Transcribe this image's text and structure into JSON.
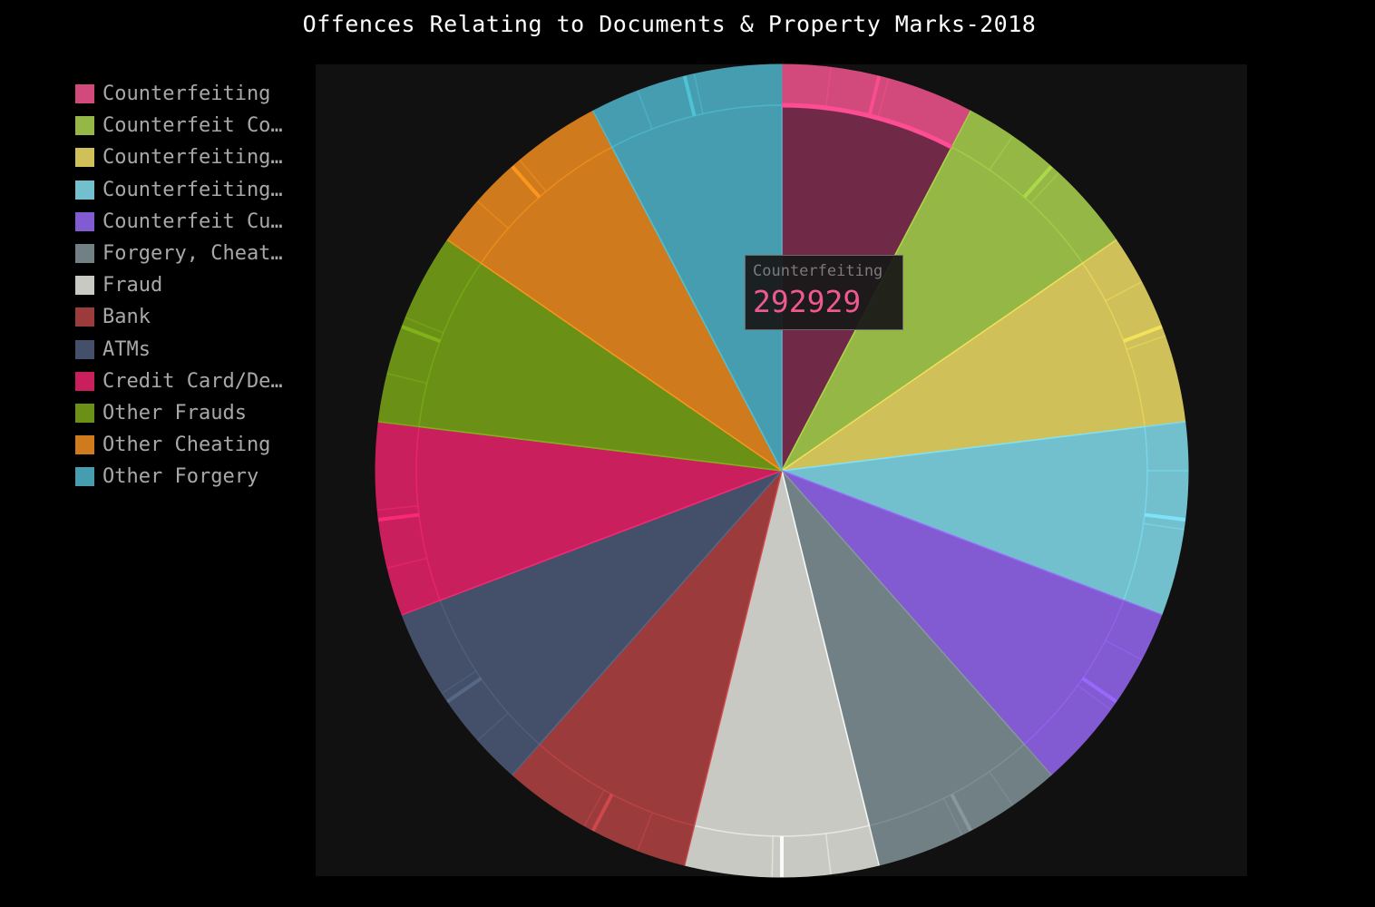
{
  "title": "Offences Relating to Documents & Property Marks-2018",
  "tooltip": {
    "name": "Counterfeiting",
    "value": "292929",
    "value_color": "#ee5a8f"
  },
  "chart_data": {
    "type": "pie",
    "title": "Offences Relating to Documents & Property Marks-2018",
    "legend_position": "left",
    "series": [
      {
        "name": "Counterfeiting",
        "legend_label": "Counterfeiting",
        "value": 292929,
        "color": "#d14a7b",
        "highlight": "#ff4d94"
      },
      {
        "name": "Counterfeit Co…",
        "legend_label": "Counterfeit Co…",
        "value": 292929,
        "color": "#95b746",
        "highlight": "#aedd4a"
      },
      {
        "name": "Counterfeiting…",
        "legend_label": "Counterfeiting…",
        "value": 292929,
        "color": "#cfc05a",
        "highlight": "#f6e45c"
      },
      {
        "name": "Counterfeiting…",
        "legend_label": "Counterfeiting…",
        "value": 292929,
        "color": "#72c0cd",
        "highlight": "#7fe6ff"
      },
      {
        "name": "Counterfeit Cu…",
        "legend_label": "Counterfeit Cu…",
        "value": 292929,
        "color": "#825ad1",
        "highlight": "#9a6cff"
      },
      {
        "name": "Forgery, Cheat…",
        "legend_label": "Forgery, Cheat…",
        "value": 292929,
        "color": "#708085",
        "highlight": "#8a9aa0"
      },
      {
        "name": "Fraud",
        "legend_label": "Fraud",
        "value": 292929,
        "color": "#c8c9c3",
        "highlight": "#ffffff"
      },
      {
        "name": "Bank",
        "legend_label": "Bank",
        "value": 292929,
        "color": "#9b3b3c",
        "highlight": "#d14a4f"
      },
      {
        "name": "ATMs",
        "legend_label": "ATMs",
        "value": 292929,
        "color": "#445069",
        "highlight": "#5a6a8a"
      },
      {
        "name": "Credit Card/De…",
        "legend_label": "Credit Card/De…",
        "value": 292929,
        "color": "#c91f5c",
        "highlight": "#ff2a7a"
      },
      {
        "name": "Other Frauds",
        "legend_label": "Other Frauds",
        "value": 292929,
        "color": "#6a9115",
        "highlight": "#84b61a"
      },
      {
        "name": "Other Cheating",
        "legend_label": "Other Cheating",
        "value": 292929,
        "color": "#cf7a1c",
        "highlight": "#ff9a20"
      },
      {
        "name": "Other Forgery",
        "legend_label": "Other Forgery",
        "value": 292929,
        "color": "#479db0",
        "highlight": "#4fc6dc"
      }
    ],
    "inner_values": [
      0.78,
      0.78,
      0.78,
      0.78,
      0.78,
      0.78,
      0.78,
      0.78,
      0.78,
      0.78,
      0.78,
      0.78,
      0.78
    ],
    "inner_colors": [
      "#702a47",
      "#95b746",
      "#cfc05a",
      "#72c0cd",
      "#825ad1",
      "#708085",
      "#c8c9c3",
      "#9b3b3c",
      "#445069",
      "#c91f5c",
      "#6a9115",
      "#cf7a1c",
      "#479db0"
    ]
  }
}
